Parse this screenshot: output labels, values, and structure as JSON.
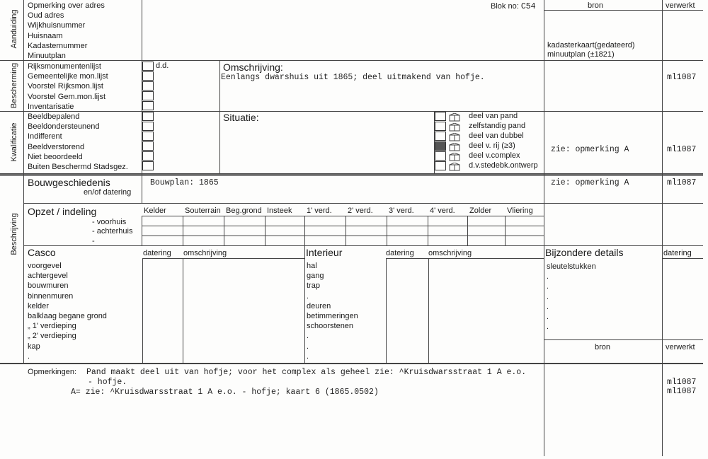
{
  "header": {
    "blok_label": "Blok no:",
    "blok_value": "C54",
    "bron": "bron",
    "verwerkt": "verwerkt"
  },
  "aanduiding": {
    "section": "Aanduiding",
    "items": [
      "Opmerking over adres",
      "Oud adres",
      "Wijkhuisnummer",
      "Huisnaam",
      "Kadasternummer",
      "Minuutplan"
    ],
    "bron": [
      "kadasterkaart(gedateerd)",
      "minuutplan (±1821)"
    ]
  },
  "bescherming": {
    "section": "Bescherming",
    "items": [
      "Rijksmonumentenlijst",
      "Gemeentelijke mon.lijst",
      "Voorstel Rijksmon.lijst",
      "Voorstel Gem.mon.lijst",
      "Inventarisatie"
    ],
    "dd": "d.d.",
    "omschrijving_label": "Omschrijving:",
    "omschrijving": "Eenlangs dwarshuis uit 1865; deel uitmakend van hofje.",
    "verwerkt": "ml1087"
  },
  "kwalificatie": {
    "section": "Kwalificatie",
    "items": [
      "Beeldbepalend",
      "Beeldondersteunend",
      "Indifferent",
      "Beeldverstorend",
      "Niet  beoordeeld",
      "Buiten Beschermd Stadsgez."
    ],
    "situatie_label": "Situatie:",
    "situatie_options": [
      {
        "label": "deel van pand",
        "checked": false
      },
      {
        "label": "zelfstandig pand",
        "checked": false
      },
      {
        "label": "deel van dubbel",
        "checked": false
      },
      {
        "label": "deel v. rij (≥3)",
        "checked": true
      },
      {
        "label": "deel v.complex",
        "checked": false
      },
      {
        "label": "d.v.stedebk.ontwerp",
        "checked": false
      }
    ],
    "bron": "zie: opmerking A",
    "verwerkt": "ml1087"
  },
  "beschrijving": {
    "section": "Beschrijving",
    "bouwgeschiedenis": {
      "label": "Bouwgeschiedenis",
      "sublabel": "en/of datering",
      "value": "Bouwplan: 1865",
      "bron": "zie: opmerking A",
      "verwerkt": "ml1087"
    },
    "opzet": {
      "label": "Opzet / indeling",
      "rows": [
        "- voorhuis",
        "- achterhuis",
        "-"
      ],
      "columns": [
        "Kelder",
        "Souterrain",
        "Beg.grond",
        "Insteek",
        "1' verd.",
        "2' verd.",
        "3' verd.",
        "4' verd.",
        "Zolder",
        "Vliering"
      ]
    },
    "casco": {
      "label": "Casco",
      "datering": "datering",
      "omschrijving": "omschrijving",
      "items": [
        "voorgevel",
        "achtergevel",
        "bouwmuren",
        "binnenmuren",
        "kelder",
        "balklaag begane grond",
        "„        1' verdieping",
        "„        2' verdieping",
        "kap",
        "."
      ]
    },
    "interieur": {
      "label": "Interieur",
      "datering": "datering",
      "omschrijving": "omschrijving",
      "items": [
        "hal",
        "gang",
        "trap",
        ".",
        "deuren",
        "betimmeringen",
        "schoorstenen",
        ".",
        ".",
        "."
      ]
    },
    "bijzondere": {
      "label": "Bijzondere details",
      "datering": "datering",
      "items": [
        "sleutelstukken",
        ".",
        ".",
        ".",
        ".",
        ".",
        "."
      ],
      "bron": "bron",
      "verwerkt": "verwerkt"
    }
  },
  "opmerkingen": {
    "label": "Opmerkingen:",
    "lines": [
      "Pand maakt deel uit van hofje; voor het complex als geheel zie: ^Kruisdwarsstraat 1 A e.o.",
      "- hofje.",
      "A= zie: ^Kruisdwarsstraat 1 A e.o. - hofje; kaart 6 (1865.0502)"
    ],
    "verwerkt": [
      "ml1087",
      "ml1087"
    ]
  }
}
